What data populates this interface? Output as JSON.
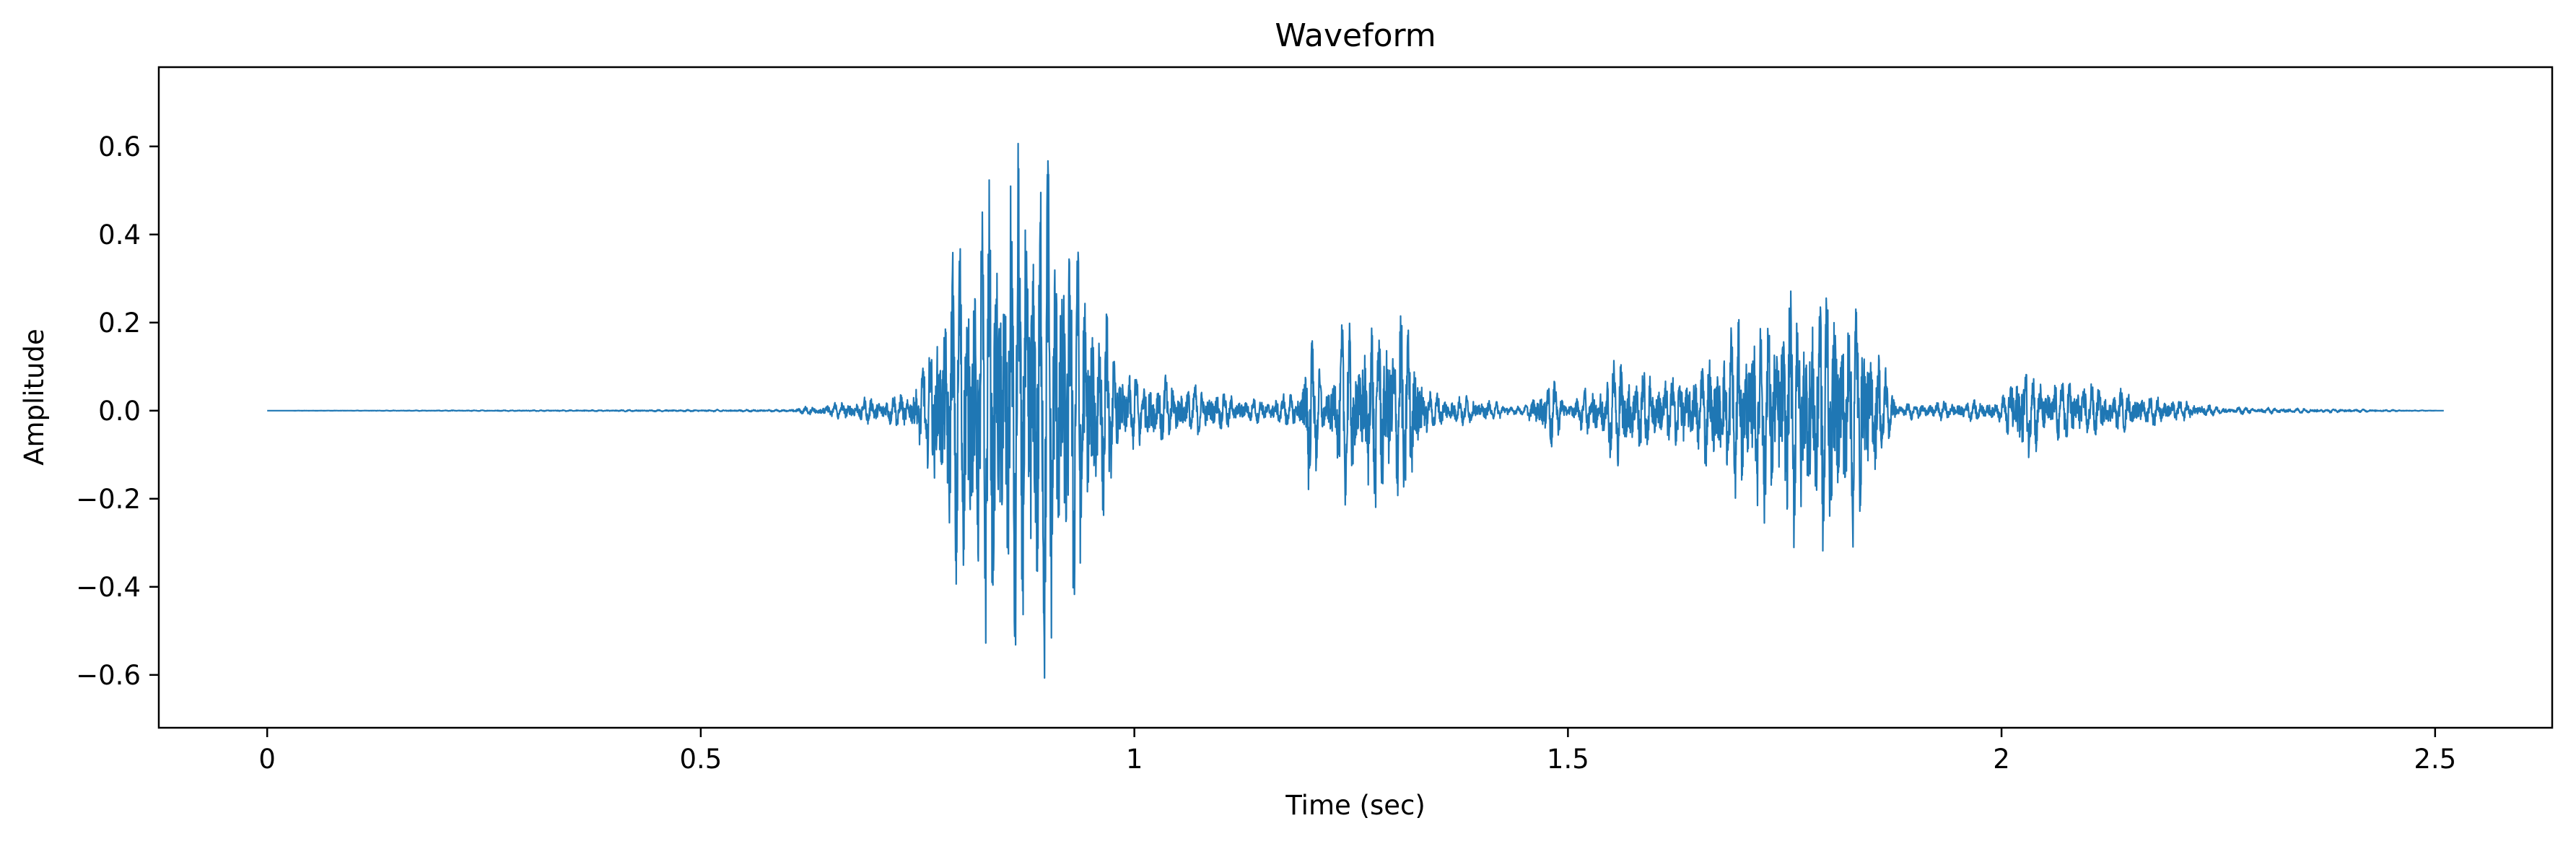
{
  "chart_data": {
    "type": "line",
    "title": "Waveform",
    "xlabel": "Time (sec)",
    "ylabel": "Amplitude",
    "xlim": [
      -0.125,
      2.635
    ],
    "ylim": [
      -0.72,
      0.78
    ],
    "x_ticks": [
      0,
      0.5,
      1,
      1.5,
      2,
      2.5
    ],
    "x_tick_labels": [
      "0",
      "0.5",
      "1",
      "1.5",
      "2",
      "2.5"
    ],
    "y_ticks": [
      0.6,
      0.4,
      0.2,
      0.0,
      -0.2,
      -0.4,
      -0.6
    ],
    "y_tick_labels": [
      "0.6",
      "0.4",
      "0.2",
      "0.0",
      "−0.2",
      "−0.4",
      "−0.6"
    ],
    "grid": false,
    "legend": "none",
    "line_color": "#1f77b4",
    "duration_sec": 2.51,
    "series": [
      {
        "x": [
          0,
          0.6,
          0.74,
          0.76,
          0.78,
          0.8,
          0.82,
          0.84,
          0.86,
          0.88,
          0.9,
          0.92,
          0.94,
          0.96,
          0.98,
          1.0,
          1.02,
          1.05,
          1.1,
          1.14,
          1.19,
          1.2,
          1.22,
          1.24,
          1.26,
          1.28,
          1.3,
          1.32,
          1.34,
          1.38,
          1.45,
          1.48,
          1.5,
          1.53,
          1.56,
          1.6,
          1.65,
          1.7,
          1.74,
          1.78,
          1.8,
          1.84,
          1.88,
          2.0,
          2.02,
          2.05,
          2.08,
          2.12,
          2.18,
          2.25,
          2.51
        ],
        "amplitude_envelope": [
          0,
          0.003,
          0.05,
          0.15,
          0.35,
          0.48,
          0.52,
          0.6,
          0.66,
          0.71,
          0.66,
          0.58,
          0.43,
          0.3,
          0.15,
          0.1,
          0.1,
          0.08,
          0.05,
          0.03,
          0.05,
          0.25,
          0.05,
          0.22,
          0.24,
          0.25,
          0.3,
          0.22,
          0.05,
          0.04,
          0.01,
          0.1,
          0.02,
          0.08,
          0.15,
          0.1,
          0.12,
          0.25,
          0.3,
          0.35,
          0.38,
          0.3,
          0.02,
          0.03,
          0.16,
          0.08,
          0.1,
          0.06,
          0.04,
          0.01,
          0
        ]
      }
    ]
  }
}
